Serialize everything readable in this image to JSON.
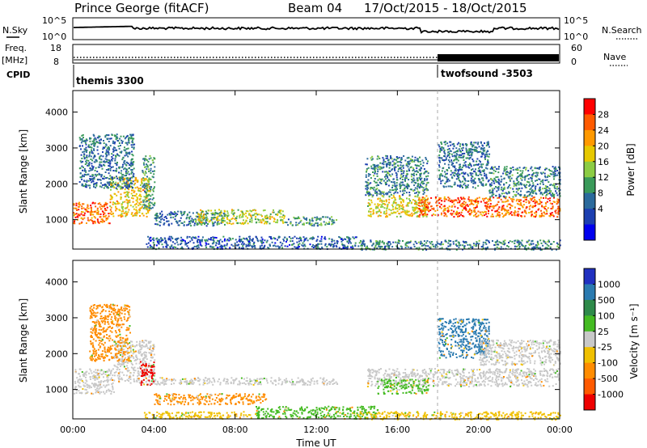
{
  "header": {
    "station": "Prince George (fitACF)",
    "beam": "Beam 04",
    "date_range": "17/Oct/2015 - 18/Oct/2015"
  },
  "top_panels": {
    "nsky_label": "N.Sky",
    "nsearch_label": "N.Search",
    "noise_ticks": [
      "10^5",
      "10^0"
    ],
    "freq_label_1": "Freq.",
    "freq_label_2": "[MHz]",
    "freq_ticks": [
      "18",
      "8"
    ],
    "nave_label": "Nave",
    "nave_ticks": [
      "60",
      "0"
    ],
    "cpid_label": "CPID",
    "cpid_segments": [
      {
        "name": "themis 3300",
        "start_h": 0
      },
      {
        "name": "twofsound -3503",
        "start_h": 18
      }
    ]
  },
  "chart_data": [
    {
      "type": "heatmap",
      "name": "power",
      "ylabel": "Slant Range [km]",
      "ylim": [
        180,
        4600
      ],
      "yticks": [
        1000,
        2000,
        3000,
        4000
      ],
      "xlim": [
        0,
        24
      ],
      "colorbar": {
        "label": "Power [dB]",
        "ticks": [
          "28",
          "24",
          "20",
          "16",
          "12",
          "8",
          "4"
        ],
        "colors": [
          "#ff0000",
          "#ff5a00",
          "#ff9900",
          "#e6c800",
          "#8ccc44",
          "#3a9a5a",
          "#2b6a9c",
          "#1c3fb0",
          "#0000ee"
        ]
      },
      "scatter_regions": [
        {
          "t0": 0.0,
          "t1": 1.8,
          "r0": 900,
          "r1": 1500,
          "level": 0.85
        },
        {
          "t0": 1.8,
          "t1": 3.8,
          "r0": 1100,
          "r1": 2200,
          "level": 0.65
        },
        {
          "t0": 0.3,
          "t1": 3.0,
          "r0": 1900,
          "r1": 3400,
          "level": 0.25
        },
        {
          "t0": 3.4,
          "t1": 4.0,
          "r0": 1300,
          "r1": 2800,
          "level": 0.35
        },
        {
          "t0": 4.0,
          "t1": 7.5,
          "r0": 850,
          "r1": 1250,
          "level": 0.25
        },
        {
          "t0": 6.0,
          "t1": 10.5,
          "r0": 900,
          "r1": 1300,
          "level": 0.55
        },
        {
          "t0": 10.5,
          "t1": 13.0,
          "r0": 850,
          "r1": 1100,
          "level": 0.35
        },
        {
          "t0": 3.6,
          "t1": 14.0,
          "r0": 200,
          "r1": 550,
          "level": 0.2
        },
        {
          "t0": 14.5,
          "t1": 17.5,
          "r0": 1100,
          "r1": 1700,
          "level": 0.6
        },
        {
          "t0": 17.0,
          "t1": 24.0,
          "r0": 1100,
          "r1": 1650,
          "level": 0.85
        },
        {
          "t0": 14.4,
          "t1": 17.5,
          "r0": 1700,
          "r1": 2800,
          "level": 0.3
        },
        {
          "t0": 18.0,
          "t1": 20.5,
          "r0": 1900,
          "r1": 3200,
          "level": 0.25
        },
        {
          "t0": 20.5,
          "t1": 24.0,
          "r0": 1650,
          "r1": 2500,
          "level": 0.3
        },
        {
          "t0": 14.0,
          "t1": 24.0,
          "r0": 180,
          "r1": 450,
          "level": 0.3
        }
      ]
    },
    {
      "type": "heatmap",
      "name": "velocity",
      "ylabel": "Slant Range [km]",
      "ylim": [
        180,
        4600
      ],
      "yticks": [
        1000,
        2000,
        3000,
        4000
      ],
      "xlim": [
        0,
        24
      ],
      "xlabel": "Time UT",
      "xticks": [
        "00:00",
        "04:00",
        "08:00",
        "12:00",
        "16:00",
        "20:00",
        "00:00"
      ],
      "colorbar": {
        "label": "Velocity  [m s⁻¹]",
        "ticks": [
          "1000",
          "500",
          "100",
          "25",
          "-25",
          "-100",
          "-500",
          "-1000"
        ],
        "colors": [
          "#2030c0",
          "#2a7ab0",
          "#2e8a4a",
          "#44bb22",
          "#c8c8c8",
          "#f0c000",
          "#ff8c00",
          "#ff5a00",
          "#ee0000"
        ]
      },
      "scatter_regions": [
        {
          "t0": 0.0,
          "t1": 2.0,
          "r0": 900,
          "r1": 1600,
          "level": "gray"
        },
        {
          "t0": 2.0,
          "t1": 4.0,
          "r0": 1200,
          "r1": 2400,
          "level": "gray"
        },
        {
          "t0": 3.3,
          "t1": 4.0,
          "r0": 1100,
          "r1": 1800,
          "level": "red"
        },
        {
          "t0": 0.8,
          "t1": 2.8,
          "r0": 1800,
          "r1": 3400,
          "level": "orange"
        },
        {
          "t0": 4.0,
          "t1": 13.0,
          "r0": 1150,
          "r1": 1350,
          "level": "gray"
        },
        {
          "t0": 4.0,
          "t1": 9.5,
          "r0": 600,
          "r1": 900,
          "level": "orange"
        },
        {
          "t0": 9.0,
          "t1": 15.0,
          "r0": 200,
          "r1": 550,
          "level": "green"
        },
        {
          "t0": 3.5,
          "t1": 9.0,
          "r0": 200,
          "r1": 400,
          "level": "yellow"
        },
        {
          "t0": 14.5,
          "t1": 24.0,
          "r0": 1100,
          "r1": 1600,
          "level": "gray"
        },
        {
          "t0": 15.0,
          "t1": 17.5,
          "r0": 900,
          "r1": 1300,
          "level": "green"
        },
        {
          "t0": 18.0,
          "t1": 20.5,
          "r0": 1900,
          "r1": 3000,
          "level": "blue"
        },
        {
          "t0": 20.0,
          "t1": 24.0,
          "r0": 1700,
          "r1": 2400,
          "level": "gray"
        },
        {
          "t0": 14.0,
          "t1": 24.0,
          "r0": 180,
          "r1": 400,
          "level": "yellow"
        }
      ]
    }
  ]
}
